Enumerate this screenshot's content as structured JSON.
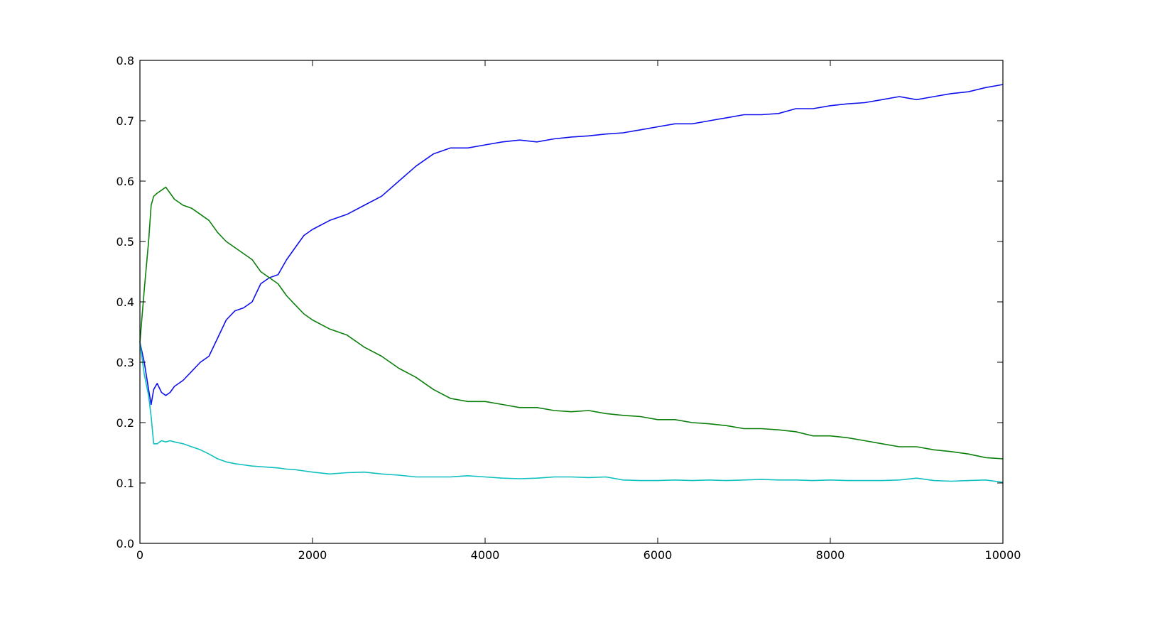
{
  "chart_data": {
    "type": "line",
    "title": "",
    "xlabel": "",
    "ylabel": "",
    "xlim": [
      0,
      10000
    ],
    "ylim": [
      0.0,
      0.8
    ],
    "grid": false,
    "legend": "none",
    "x_ticks": [
      0,
      2000,
      4000,
      6000,
      8000,
      10000
    ],
    "x_tick_labels": [
      "0",
      "2000",
      "4000",
      "6000",
      "8000",
      "10000"
    ],
    "y_ticks": [
      0.0,
      0.1,
      0.2,
      0.3,
      0.4,
      0.5,
      0.6,
      0.7,
      0.8
    ],
    "y_tick_labels": [
      "0.0",
      "0.1",
      "0.2",
      "0.3",
      "0.4",
      "0.5",
      "0.6",
      "0.7",
      "0.8"
    ],
    "series": [
      {
        "color": "#1010ee",
        "x": [
          0,
          50,
          100,
          130,
          160,
          200,
          250,
          300,
          350,
          400,
          500,
          600,
          700,
          800,
          900,
          1000,
          1100,
          1200,
          1300,
          1400,
          1500,
          1600,
          1700,
          1800,
          1900,
          2000,
          2200,
          2400,
          2600,
          2800,
          3000,
          3200,
          3400,
          3600,
          3800,
          4000,
          4200,
          4400,
          4600,
          4800,
          5000,
          5200,
          5400,
          5600,
          5800,
          6000,
          6200,
          6400,
          6600,
          6800,
          7000,
          7200,
          7400,
          7600,
          7800,
          8000,
          8200,
          8400,
          8600,
          8800,
          9000,
          9200,
          9400,
          9600,
          9800,
          10000
        ],
        "y": [
          0.333,
          0.3,
          0.255,
          0.23,
          0.255,
          0.265,
          0.25,
          0.245,
          0.25,
          0.26,
          0.27,
          0.285,
          0.3,
          0.31,
          0.34,
          0.37,
          0.385,
          0.39,
          0.4,
          0.43,
          0.44,
          0.445,
          0.47,
          0.49,
          0.51,
          0.52,
          0.535,
          0.545,
          0.56,
          0.575,
          0.6,
          0.625,
          0.645,
          0.655,
          0.655,
          0.66,
          0.665,
          0.668,
          0.665,
          0.67,
          0.673,
          0.675,
          0.678,
          0.68,
          0.685,
          0.69,
          0.695,
          0.695,
          0.7,
          0.705,
          0.71,
          0.71,
          0.712,
          0.72,
          0.72,
          0.725,
          0.728,
          0.73,
          0.735,
          0.74,
          0.735,
          0.74,
          0.745,
          0.748,
          0.755,
          0.76
        ]
      },
      {
        "color": "#0c7f0c",
        "x": [
          0,
          50,
          100,
          130,
          160,
          200,
          250,
          300,
          350,
          400,
          500,
          600,
          700,
          800,
          900,
          1000,
          1100,
          1200,
          1300,
          1400,
          1500,
          1600,
          1700,
          1800,
          1900,
          2000,
          2200,
          2400,
          2600,
          2800,
          3000,
          3200,
          3400,
          3600,
          3800,
          4000,
          4200,
          4400,
          4600,
          4800,
          5000,
          5200,
          5400,
          5600,
          5800,
          6000,
          6200,
          6400,
          6600,
          6800,
          7000,
          7200,
          7400,
          7600,
          7800,
          8000,
          8200,
          8400,
          8600,
          8800,
          9000,
          9200,
          9400,
          9600,
          9800,
          10000
        ],
        "y": [
          0.333,
          0.42,
          0.5,
          0.56,
          0.575,
          0.58,
          0.585,
          0.59,
          0.58,
          0.57,
          0.56,
          0.555,
          0.545,
          0.535,
          0.515,
          0.5,
          0.49,
          0.48,
          0.47,
          0.45,
          0.44,
          0.43,
          0.41,
          0.395,
          0.38,
          0.37,
          0.355,
          0.345,
          0.325,
          0.31,
          0.29,
          0.275,
          0.255,
          0.24,
          0.235,
          0.235,
          0.23,
          0.225,
          0.225,
          0.22,
          0.218,
          0.22,
          0.215,
          0.212,
          0.21,
          0.205,
          0.205,
          0.2,
          0.198,
          0.195,
          0.19,
          0.19,
          0.188,
          0.185,
          0.178,
          0.178,
          0.175,
          0.17,
          0.165,
          0.16,
          0.16,
          0.155,
          0.152,
          0.148,
          0.142,
          0.14
        ]
      },
      {
        "color": "#10bfbf",
        "x": [
          0,
          50,
          100,
          130,
          160,
          200,
          250,
          300,
          350,
          400,
          500,
          600,
          700,
          800,
          900,
          1000,
          1100,
          1200,
          1300,
          1400,
          1500,
          1600,
          1700,
          1800,
          1900,
          2000,
          2200,
          2400,
          2600,
          2800,
          3000,
          3200,
          3400,
          3600,
          3800,
          4000,
          4200,
          4400,
          4600,
          4800,
          5000,
          5200,
          5400,
          5600,
          5800,
          6000,
          6200,
          6400,
          6600,
          6800,
          7000,
          7200,
          7400,
          7600,
          7800,
          8000,
          8200,
          8400,
          8600,
          8800,
          9000,
          9200,
          9400,
          9600,
          9800,
          10000
        ],
        "y": [
          0.333,
          0.28,
          0.245,
          0.21,
          0.165,
          0.165,
          0.17,
          0.168,
          0.17,
          0.168,
          0.165,
          0.16,
          0.155,
          0.148,
          0.14,
          0.135,
          0.132,
          0.13,
          0.128,
          0.127,
          0.126,
          0.125,
          0.123,
          0.122,
          0.12,
          0.118,
          0.115,
          0.117,
          0.118,
          0.115,
          0.113,
          0.11,
          0.11,
          0.11,
          0.112,
          0.11,
          0.108,
          0.107,
          0.108,
          0.11,
          0.11,
          0.109,
          0.11,
          0.105,
          0.104,
          0.104,
          0.105,
          0.104,
          0.105,
          0.104,
          0.105,
          0.106,
          0.105,
          0.105,
          0.104,
          0.105,
          0.104,
          0.104,
          0.104,
          0.105,
          0.108,
          0.104,
          0.103,
          0.104,
          0.105,
          0.101
        ]
      }
    ]
  }
}
